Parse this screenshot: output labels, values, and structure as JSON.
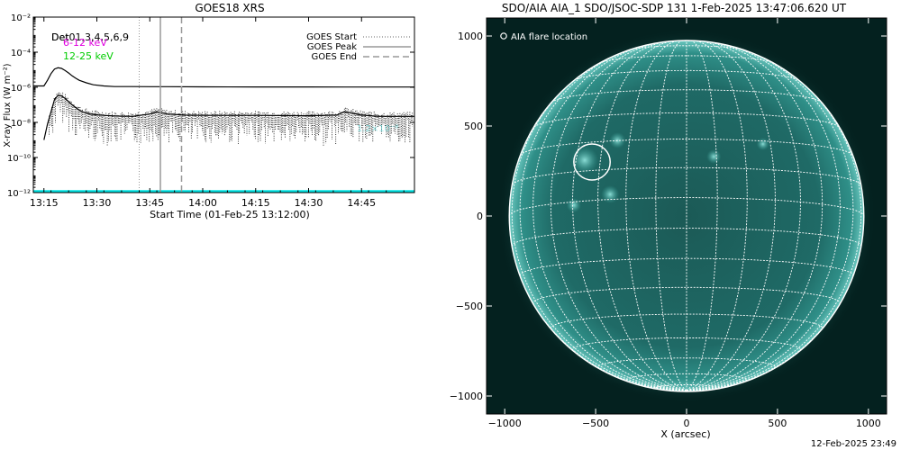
{
  "footer_timestamp": "12-Feb-2025 23:49",
  "chart_data": [
    {
      "type": "line",
      "title": "GOES18 XRS",
      "xlabel": "Start Time (01-Feb-25 13:12:00)",
      "ylabel": "X-ray Flux (W m⁻²)",
      "y_scale": "log",
      "xlim": [
        "13:12",
        "15:00"
      ],
      "ylim": [
        1e-12,
        0.01
      ],
      "x_ticks": [
        "13:15",
        "13:30",
        "13:45",
        "14:00",
        "14:15",
        "14:30",
        "14:45"
      ],
      "y_ticks": [
        {
          "value": 1e-12,
          "label": "10⁻¹²"
        },
        {
          "value": 1e-10,
          "label": "10⁻¹⁰"
        },
        {
          "value": 1e-08,
          "label": "10⁻⁸"
        },
        {
          "value": 1e-06,
          "label": "10⁻⁶"
        },
        {
          "value": 0.0001,
          "label": "10⁻⁴"
        },
        {
          "value": 0.01,
          "label": "10⁻²"
        }
      ],
      "legend_left": [
        {
          "label": "Det01,3,4,5,6,9",
          "color": "#000000"
        },
        {
          "label": "Det",
          "color": "#000000"
        },
        {
          "label": "6-12 keV",
          "color": "#e000e0"
        },
        {
          "label": "12-25 keV",
          "color": "#00cc00"
        }
      ],
      "legend_right": [
        {
          "label": "GOES Start",
          "style": "dotted"
        },
        {
          "label": "GOES Peak",
          "style": "solid"
        },
        {
          "label": "GOES End",
          "style": "dashed"
        }
      ],
      "faint_label": "1.2×10⁻⁸",
      "event_lines": {
        "start": "13:42",
        "peak": "13:48",
        "end": "13:54"
      },
      "series": [
        {
          "color": "#000000",
          "x": [
            "13:12",
            "13:15",
            "13:16",
            "13:17",
            "13:18",
            "13:19",
            "13:20",
            "13:21",
            "13:22",
            "13:23",
            "13:24",
            "13:25",
            "13:27",
            "13:29",
            "13:32",
            "13:35",
            "13:40",
            "13:45",
            "13:50",
            "14:00",
            "14:15",
            "14:30",
            "14:45",
            "15:00"
          ],
          "values": [
            1.2e-06,
            1.2e-06,
            2.5e-06,
            6e-06,
            1.1e-05,
            1.3e-05,
            1.2e-05,
            9e-06,
            6.5e-06,
            4.5e-06,
            3.3e-06,
            2.5e-06,
            1.8e-06,
            1.4e-06,
            1.2e-06,
            1.1e-06,
            1.1e-06,
            1.08e-06,
            1.08e-06,
            1.06e-06,
            1.05e-06,
            1.05e-06,
            1.04e-06,
            1.04e-06
          ]
        },
        {
          "color": "#000000",
          "x": [
            "13:15",
            "13:16",
            "13:17",
            "13:18",
            "13:19",
            "13:20",
            "13:21",
            "13:22",
            "13:23",
            "13:24",
            "13:25",
            "13:26",
            "13:27",
            "13:28",
            "13:30",
            "13:32",
            "13:35",
            "13:40",
            "13:45",
            "13:47",
            "13:50",
            "13:55",
            "14:00",
            "14:15",
            "14:30",
            "14:38",
            "14:40",
            "14:42",
            "14:45",
            "14:50",
            "15:00"
          ],
          "values": [
            1e-09,
            8e-09,
            4e-08,
            2e-07,
            3.5e-07,
            3.2e-07,
            2.3e-07,
            1.5e-07,
            1e-07,
            7e-08,
            5e-08,
            4e-08,
            3.5e-08,
            3e-08,
            2.7e-08,
            2.5e-08,
            2.3e-08,
            2.2e-08,
            3e-08,
            4e-08,
            3e-08,
            2.6e-08,
            2.5e-08,
            2.5e-08,
            2.4e-08,
            2.6e-08,
            4e-08,
            3.5e-08,
            2.6e-08,
            2.2e-08,
            2.2e-08
          ]
        },
        {
          "color": "#00e0e0",
          "x": [
            "13:12",
            "15:00"
          ],
          "values": [
            1.2e-12,
            1.2e-12
          ]
        }
      ]
    },
    {
      "type": "image",
      "title": "SDO/AIA AIA_1 SDO/JSOC-SDP 131  1-Feb-2025 13:47:06.620 UT",
      "xlabel": "X (arcsec)",
      "ylabel": "",
      "xlim": [
        -1100,
        1100
      ],
      "ylim": [
        -1100,
        1100
      ],
      "x_ticks": [
        -1000,
        -500,
        0,
        500,
        1000
      ],
      "y_ticks": [
        -1000,
        -500,
        0,
        500,
        1000
      ],
      "x_tick_labels": [
        "−1000",
        "−500",
        "0",
        "500",
        "1000"
      ],
      "y_tick_labels": [
        "−1000",
        "−500",
        "0",
        "500",
        "1000"
      ],
      "legend": "AIA flare location",
      "flare_location": {
        "x": -520,
        "y": 300
      },
      "solar_radius": 975
    }
  ]
}
